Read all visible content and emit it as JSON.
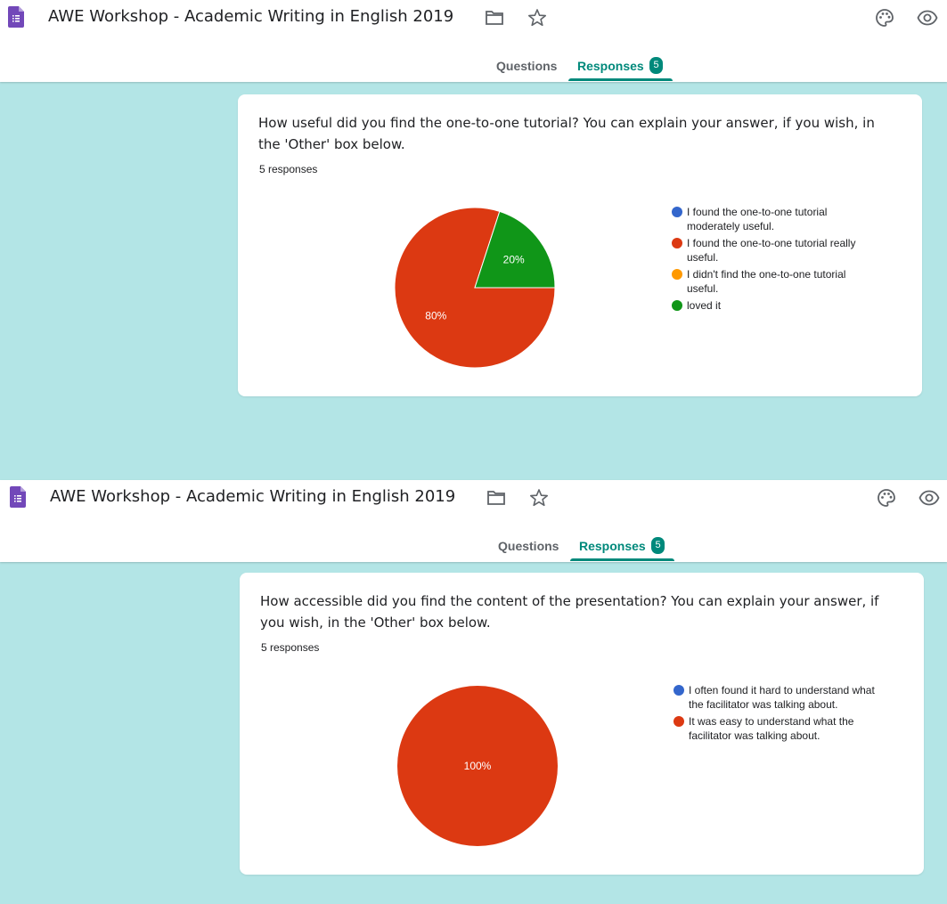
{
  "app": {
    "form_title": "AWE Workshop - Academic Writing in English 2019",
    "tabs": {
      "questions": "Questions",
      "responses": "Responses",
      "responses_count": "5"
    },
    "icons": [
      "forms-icon",
      "folder-icon",
      "star-icon",
      "palette-icon",
      "preview-eye-icon"
    ],
    "accent_color": "#00897b",
    "background_color": "#b3e5e6"
  },
  "questions": [
    {
      "text": "How useful did you find the one-to-one tutorial? You can explain your answer, if you wish, in the 'Other' box below.",
      "responses_label": "5 responses",
      "chart_data": {
        "type": "pie",
        "labels": [
          "I found the one-to-one tutorial moderately useful.",
          "I found the one-to-one tutorial really useful.",
          "I didn't find the one-to-one tutorial useful.",
          "loved it"
        ],
        "values": [
          0,
          80,
          0,
          20
        ],
        "slice_labels": [
          "",
          "80%",
          "",
          "20%"
        ],
        "colors": [
          "#3366cc",
          "#dc3912",
          "#ff9900",
          "#109618"
        ],
        "legend_position": "right"
      }
    },
    {
      "text": "How accessible did you find the content of the presentation? You can explain your answer, if you wish, in the 'Other' box below.",
      "responses_label": "5 responses",
      "chart_data": {
        "type": "pie",
        "labels": [
          "I often found it hard to understand what the facilitator was talking about.",
          "It was easy to understand what the facilitator was talking about."
        ],
        "values": [
          0,
          100
        ],
        "slice_labels": [
          "",
          "100%"
        ],
        "colors": [
          "#3366cc",
          "#dc3912"
        ],
        "legend_position": "right"
      }
    }
  ]
}
